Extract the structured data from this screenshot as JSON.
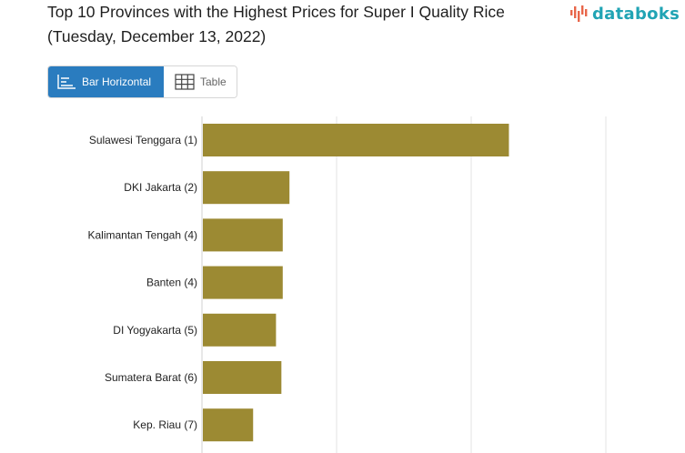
{
  "header": {
    "title": "Top 10 Provinces with the Highest Prices for Super I Quality Rice (Tuesday, December 13, 2022)",
    "logo_text": "databoks"
  },
  "view_tabs": {
    "bar_label": "Bar Horizontal",
    "table_label": "Table",
    "active": "Bar Horizontal"
  },
  "colors": {
    "bar": "#9c8a33",
    "tab_active": "#2a7cbf",
    "logo": "#21a4b4",
    "logo_mark": "#e8664a"
  },
  "chart_data": {
    "type": "bar",
    "orientation": "horizontal",
    "categories": [
      "Sulawesi Tenggara (1)",
      "DKI Jakarta (2)",
      "Kalimantan Tengah (4)",
      "Banten (4)",
      "DI Yogyakarta (5)",
      "Sumatera Barat (6)",
      "Kep. Riau (7)"
    ],
    "values": [
      228,
      65,
      60,
      60,
      55,
      59,
      38
    ],
    "xlim": [
      0,
      300
    ],
    "grid": true
  }
}
